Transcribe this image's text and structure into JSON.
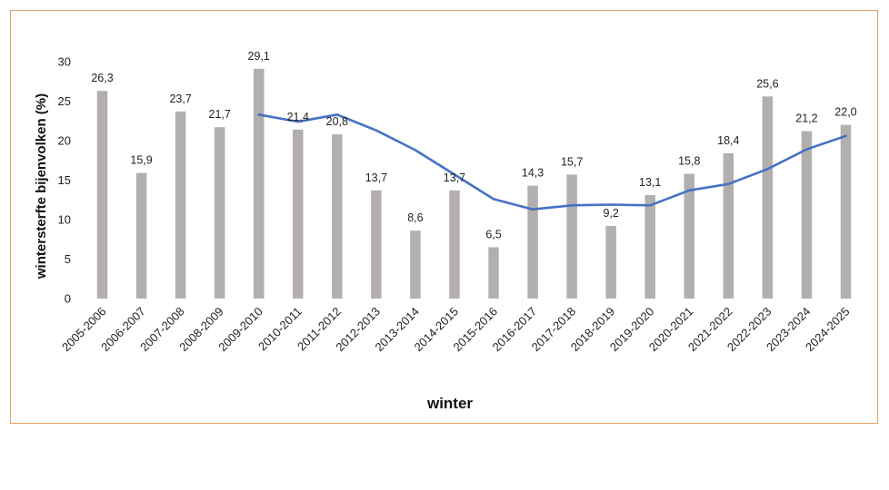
{
  "chart_data": {
    "type": "bar",
    "title": "",
    "xlabel": "winter",
    "ylabel": "wintersterfte bijenvolken (%)",
    "ylim": [
      0,
      30
    ],
    "yticks": [
      0,
      5,
      10,
      15,
      20,
      25,
      30
    ],
    "grid": false,
    "legend": "none",
    "categories": [
      "2005-2006",
      "2006-2007",
      "2007-2008",
      "2008-2009",
      "2009-2010",
      "2010-2011",
      "2011-2012",
      "2012-2013",
      "2013-2014",
      "2014-2015",
      "2015-2016",
      "2016-2017",
      "2017-2018",
      "2018-2019",
      "2019-2020",
      "2020-2021",
      "2021-2022",
      "2022-2023",
      "2023-2024",
      "2024-2025"
    ],
    "series": [
      {
        "type": "bar",
        "color": "#b3afae",
        "values": [
          26.3,
          15.9,
          23.7,
          21.7,
          29.1,
          21.4,
          20.8,
          13.7,
          8.6,
          13.7,
          6.5,
          14.3,
          15.7,
          9.2,
          13.1,
          15.8,
          18.4,
          25.6,
          21.2,
          22.0
        ],
        "value_labels": [
          "26,3",
          "15,9",
          "23,7",
          "21,7",
          "29,1",
          "21,4",
          "20,8",
          "13,7",
          "8,6",
          "13,7",
          "6,5",
          "14,3",
          "15,7",
          "9,2",
          "13,1",
          "15,8",
          "18,4",
          "25,6",
          "21,2",
          "22,0"
        ]
      },
      {
        "type": "line",
        "color": "#4472c4",
        "values": [
          null,
          null,
          null,
          null,
          23.3,
          22.4,
          23.3,
          21.3,
          18.8,
          15.7,
          12.6,
          11.3,
          11.8,
          11.9,
          11.8,
          13.7,
          14.5,
          16.4,
          18.9,
          20.6
        ]
      }
    ]
  }
}
